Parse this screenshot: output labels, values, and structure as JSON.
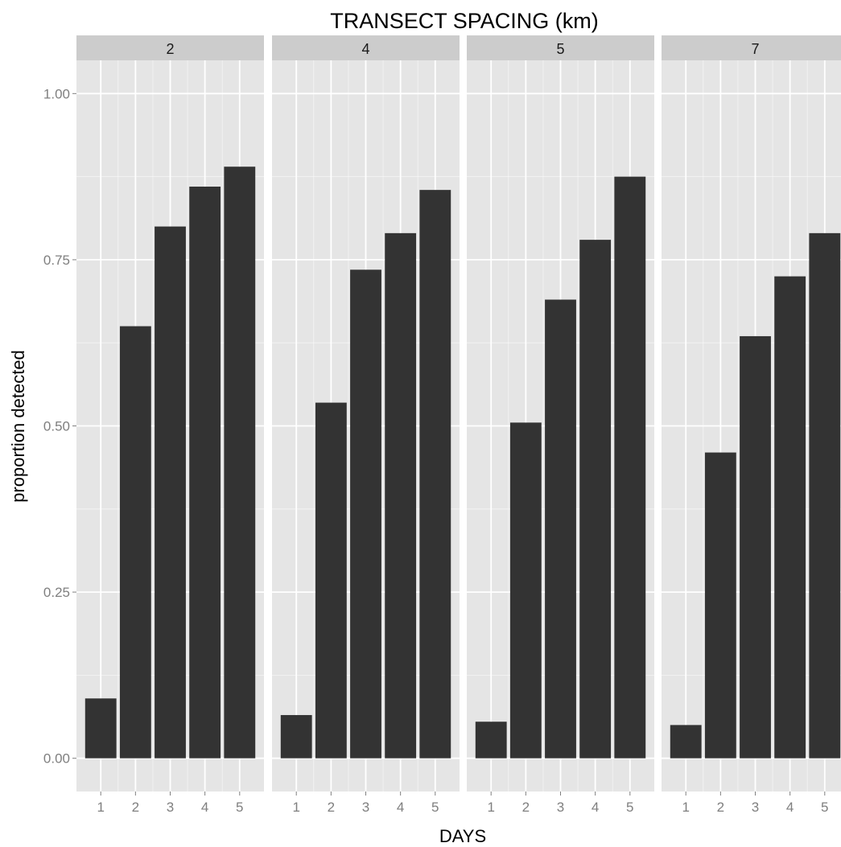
{
  "chart_data": {
    "type": "bar",
    "title": "TRANSECT SPACING (km)",
    "xlabel": "DAYS",
    "ylabel": "proportion detected",
    "ylim": [
      -0.05,
      1.05
    ],
    "y_ticks": [
      "0.00",
      "0.25",
      "0.50",
      "0.75",
      "1.00"
    ],
    "y_tick_values": [
      0,
      0.25,
      0.5,
      0.75,
      1.0
    ],
    "categories": [
      "1",
      "2",
      "3",
      "4",
      "5"
    ],
    "facets": [
      {
        "label": "2",
        "values": [
          0.09,
          0.65,
          0.8,
          0.86,
          0.89
        ]
      },
      {
        "label": "4",
        "values": [
          0.065,
          0.535,
          0.735,
          0.79,
          0.855
        ]
      },
      {
        "label": "5",
        "values": [
          0.055,
          0.505,
          0.69,
          0.78,
          0.875
        ]
      },
      {
        "label": "7",
        "values": [
          0.05,
          0.46,
          0.635,
          0.725,
          0.79
        ]
      }
    ],
    "bar_color": "#333333",
    "panel_background": "#e5e5e5",
    "strip_background": "#cccccc",
    "grid_color": "#ffffff",
    "grid": true,
    "legend": "none"
  }
}
